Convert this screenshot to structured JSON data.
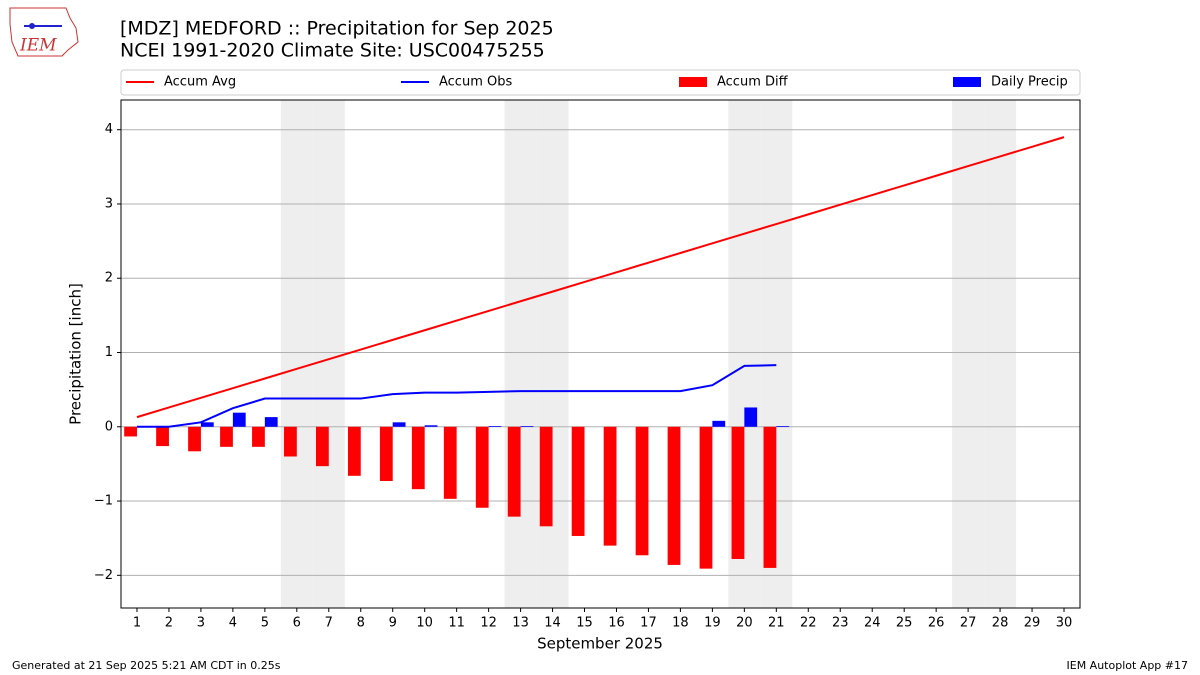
{
  "chart_data": {
    "type": "combo",
    "title": "[MDZ] MEDFORD :: Precipitation for Sep 2025",
    "subtitle": "NCEI 1991-2020 Climate Site: USC00475255",
    "xlabel": "September 2025",
    "ylabel": "Precipitation [inch]",
    "footer_left": "Generated at 21 Sep 2025 5:21 AM CDT in 0.25s",
    "footer_right": "IEM Autoplot App #17",
    "logo_text": "IEM",
    "x": [
      1,
      2,
      3,
      4,
      5,
      6,
      7,
      8,
      9,
      10,
      11,
      12,
      13,
      14,
      15,
      16,
      17,
      18,
      19,
      20,
      21,
      22,
      23,
      24,
      25,
      26,
      27,
      28,
      29,
      30
    ],
    "xlim": [
      0.5,
      30.5
    ],
    "xticks": [
      1,
      2,
      3,
      4,
      5,
      6,
      7,
      8,
      9,
      10,
      11,
      12,
      13,
      14,
      15,
      16,
      17,
      18,
      19,
      20,
      21,
      22,
      23,
      24,
      25,
      26,
      27,
      28,
      29,
      30
    ],
    "ylim": [
      -2.44,
      4.4
    ],
    "yticks": [
      {
        "value": -2,
        "label": "−2"
      },
      {
        "value": -1,
        "label": "−1"
      },
      0,
      1,
      2,
      3,
      4
    ],
    "grid": true,
    "shaded_days": [
      6,
      7,
      13,
      14,
      20,
      21,
      27,
      28
    ],
    "series": [
      {
        "name": "Accum Avg",
        "kind": "line",
        "color": "#ff0000",
        "values": [
          0.13,
          0.26,
          0.39,
          0.52,
          0.65,
          0.78,
          0.91,
          1.04,
          1.17,
          1.3,
          1.43,
          1.56,
          1.69,
          1.82,
          1.95,
          2.08,
          2.21,
          2.34,
          2.47,
          2.6,
          2.73,
          2.86,
          2.99,
          3.12,
          3.25,
          3.38,
          3.51,
          3.64,
          3.77,
          3.9
        ]
      },
      {
        "name": "Accum Obs",
        "kind": "line",
        "color": "#0000ff",
        "values": [
          0,
          0,
          0.06,
          0.25,
          0.38,
          0.38,
          0.38,
          0.38,
          0.44,
          0.46,
          0.46,
          0.47,
          0.48,
          0.48,
          0.48,
          0.48,
          0.48,
          0.48,
          0.56,
          0.82,
          0.83,
          null,
          null,
          null,
          null,
          null,
          null,
          null,
          null,
          null
        ]
      },
      {
        "name": "Accum Diff",
        "kind": "bar",
        "offset": -0.2,
        "color": "#ff0000",
        "values": [
          -0.13,
          -0.26,
          -0.33,
          -0.27,
          -0.27,
          -0.4,
          -0.53,
          -0.66,
          -0.73,
          -0.84,
          -0.97,
          -1.09,
          -1.21,
          -1.34,
          -1.47,
          -1.6,
          -1.73,
          -1.86,
          -1.91,
          -1.78,
          -1.9,
          null,
          null,
          null,
          null,
          null,
          null,
          null,
          null,
          null
        ]
      },
      {
        "name": "Daily Precip",
        "kind": "bar",
        "offset": 0.2,
        "color": "#0000ff",
        "values": [
          0,
          0,
          0.06,
          0.19,
          0.13,
          0,
          0,
          0,
          0.06,
          0.02,
          0,
          0.01,
          0.01,
          0,
          0,
          0,
          0,
          0,
          0.08,
          0.26,
          0.01,
          null,
          null,
          null,
          null,
          null,
          null,
          null,
          null,
          null
        ]
      }
    ]
  }
}
